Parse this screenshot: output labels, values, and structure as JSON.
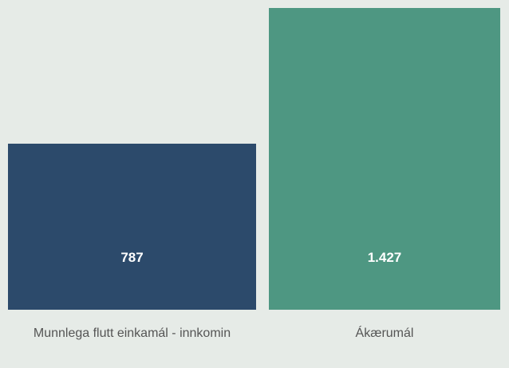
{
  "chart_data": {
    "type": "bar",
    "categories": [
      "Munnlega flutt einkamál - innkomin",
      "Ákærumál"
    ],
    "values": [
      787,
      1427
    ],
    "value_labels": [
      "787",
      "1.427"
    ],
    "colors": [
      "#2c4a6b",
      "#4e9782"
    ],
    "ylim": [
      0,
      1427
    ]
  }
}
